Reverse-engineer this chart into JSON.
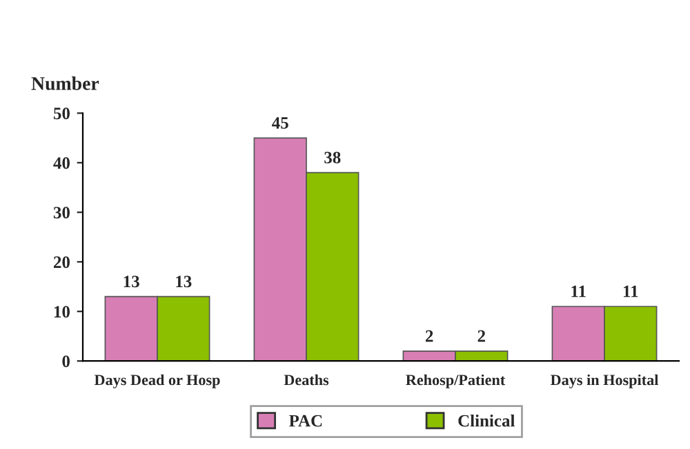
{
  "chart_data": {
    "type": "bar",
    "ylabel": "Number",
    "categories": [
      "Days Dead or Hosp",
      "Deaths",
      "Rehosp/Patient",
      "Days in Hospital"
    ],
    "series": [
      {
        "name": "PAC",
        "color": "#d77fb5",
        "values": [
          13,
          45,
          2,
          11
        ]
      },
      {
        "name": "Clinical",
        "color": "#8cbf00",
        "values": [
          13,
          38,
          2,
          11
        ]
      }
    ],
    "ylim": [
      0,
      50
    ],
    "yticks": [
      0,
      10,
      20,
      30,
      40,
      50
    ],
    "data_labels": true,
    "grid": false,
    "legend": "bottom"
  }
}
